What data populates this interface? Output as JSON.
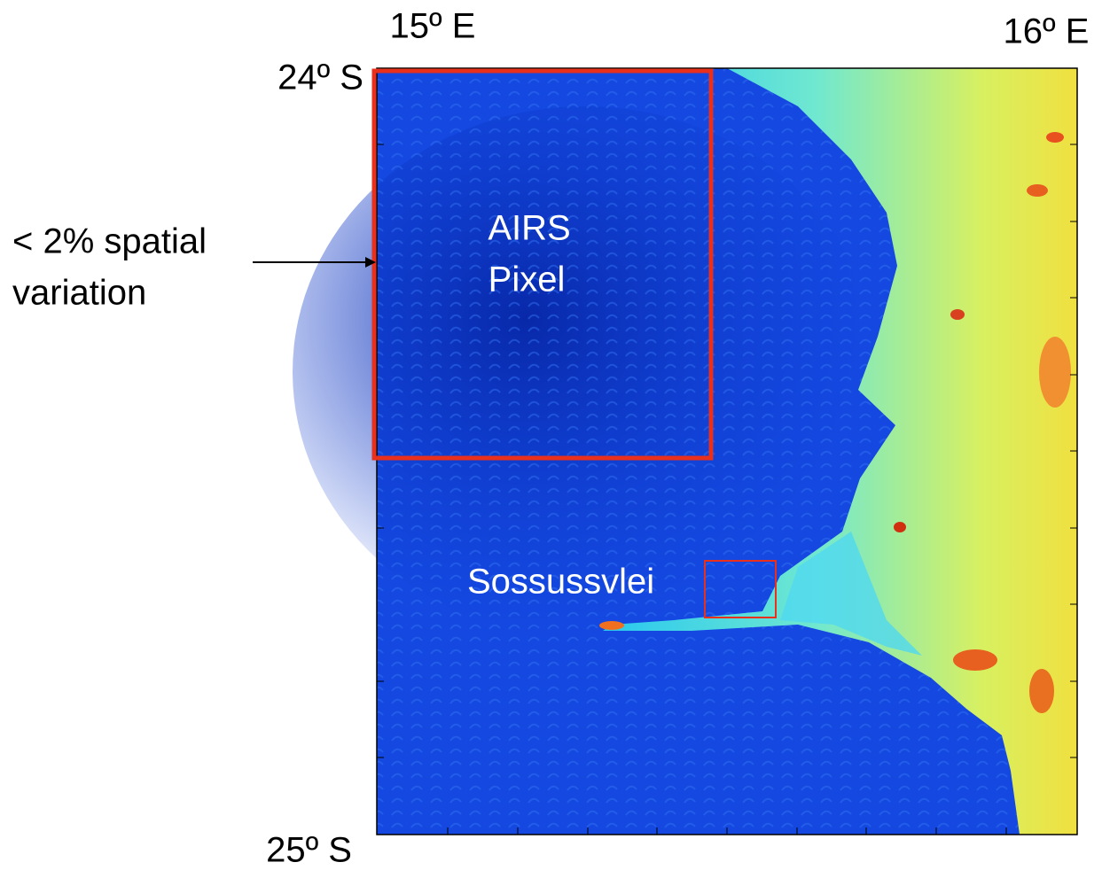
{
  "labels": {
    "lon_left": "15º E",
    "lon_right": "16º E",
    "lat_top": "24º S",
    "lat_bottom": "25º S"
  },
  "annotation": {
    "lines": [
      "< 2% spatial",
      "variation"
    ]
  },
  "airs_box": {
    "lines": [
      "AIRS",
      "Pixel"
    ]
  },
  "site": {
    "label": "Sossussvlei"
  }
}
